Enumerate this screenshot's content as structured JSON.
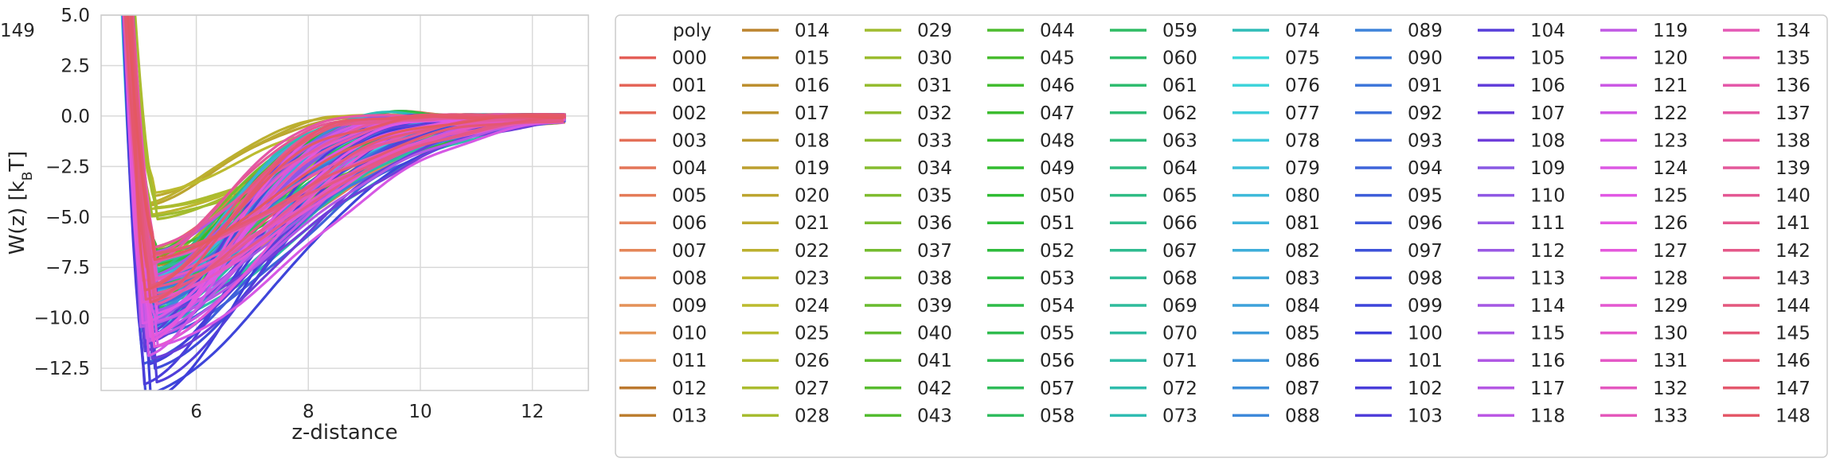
{
  "chart_data": {
    "type": "line",
    "xlabel": "z-distance",
    "ylabel": "W(z) [k",
    "ylabel_sub": "B",
    "ylabel_suffix": "T]",
    "xlim": [
      4.3,
      13.0
    ],
    "ylim": [
      -13.6,
      5.0
    ],
    "xticks": [
      6,
      8,
      10,
      12
    ],
    "yticks": [
      5.0,
      2.5,
      0.0,
      -2.5,
      -5.0,
      -7.5,
      -10.0,
      -12.5
    ],
    "xtick_labels": [
      "6",
      "8",
      "10",
      "12"
    ],
    "ytick_labels": [
      "5.0",
      "2.5",
      "0.0",
      "−2.5",
      "−5.0",
      "−7.5",
      "−10.0",
      "−12.5"
    ],
    "grid": true,
    "legend": {
      "title": "poly",
      "placement": "right, outside plot",
      "columns": 10
    },
    "series_names": [
      "000",
      "001",
      "002",
      "003",
      "004",
      "005",
      "006",
      "007",
      "008",
      "009",
      "010",
      "011",
      "012",
      "013",
      "014",
      "015",
      "016",
      "017",
      "018",
      "019",
      "020",
      "021",
      "022",
      "023",
      "024",
      "025",
      "026",
      "027",
      "028",
      "029",
      "030",
      "031",
      "032",
      "033",
      "034",
      "035",
      "036",
      "037",
      "038",
      "039",
      "040",
      "041",
      "042",
      "043",
      "044",
      "045",
      "046",
      "047",
      "048",
      "049",
      "050",
      "051",
      "052",
      "053",
      "054",
      "055",
      "056",
      "057",
      "058",
      "059",
      "060",
      "061",
      "062",
      "063",
      "064",
      "065",
      "066",
      "067",
      "068",
      "069",
      "070",
      "071",
      "072",
      "073",
      "074",
      "075",
      "076",
      "077",
      "078",
      "079",
      "080",
      "081",
      "082",
      "083",
      "084",
      "085",
      "086",
      "087",
      "088",
      "089",
      "090",
      "091",
      "092",
      "093",
      "094",
      "095",
      "096",
      "097",
      "098",
      "099",
      "100",
      "101",
      "102",
      "103",
      "104",
      "105",
      "106",
      "107",
      "108",
      "109",
      "110",
      "111",
      "112",
      "113",
      "114",
      "115",
      "116",
      "117",
      "118",
      "119",
      "120",
      "121",
      "122",
      "123",
      "124",
      "125",
      "126",
      "127",
      "128",
      "129",
      "130",
      "131",
      "132",
      "133",
      "134",
      "135",
      "136",
      "137",
      "138",
      "139",
      "140",
      "141",
      "142",
      "143",
      "144",
      "145",
      "146",
      "147",
      "148",
      "149"
    ],
    "series_shape": {
      "x_start": [
        4.6,
        4.8
      ],
      "x_end": 12.6,
      "min_x_range": [
        5.0,
        5.3
      ],
      "min_y_range": [
        -13.3,
        -3.0
      ],
      "plateau_y": 0.0
    },
    "palette": "husl-150",
    "colors": {
      "spine": "#cccccc",
      "grid": "#d9d9d9",
      "text": "#262626"
    }
  }
}
